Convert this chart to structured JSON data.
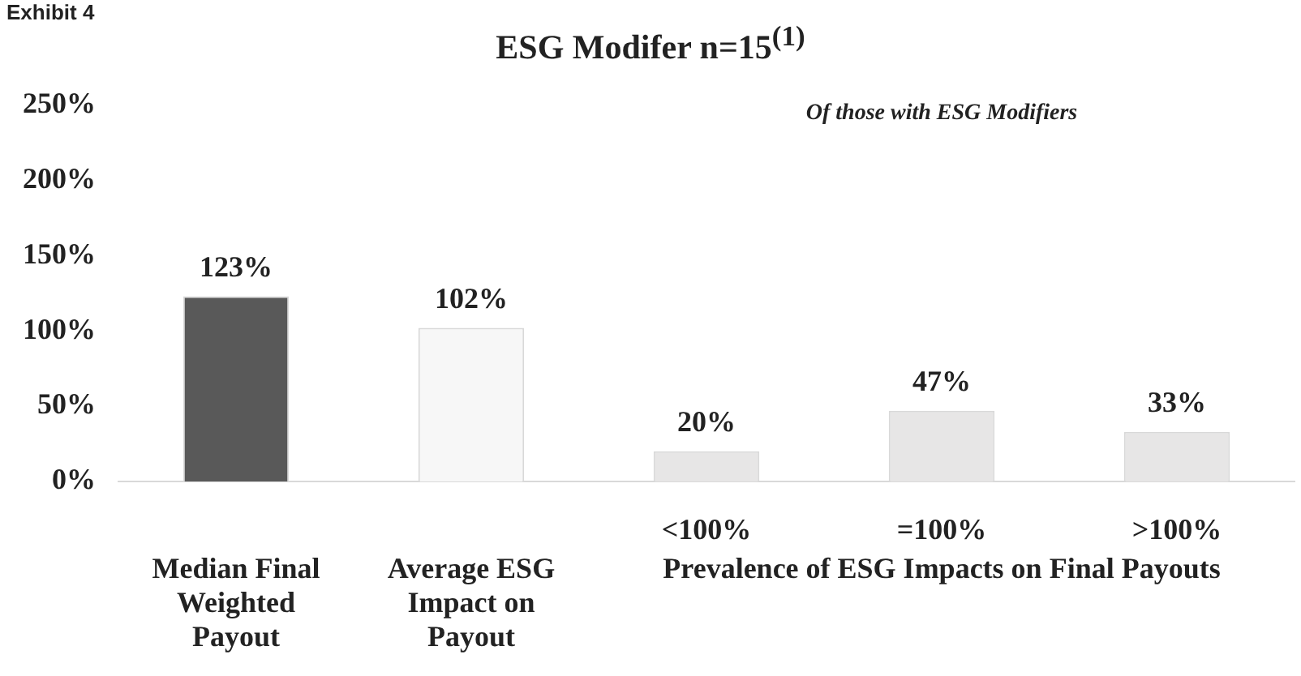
{
  "chart_data": {
    "type": "bar",
    "title": "ESG Modifer n=15$^{(1)}$",
    "categories": [
      "Median Final Weighted Payout",
      "Average ESG Impact on Payout",
      "<100%",
      "=100%",
      ">100%"
    ],
    "values": [
      123,
      102,
      20,
      47,
      33
    ],
    "colors": [
      "#595959",
      "#f7f7f7",
      "#e7e6e6",
      "#e7e6e6",
      "#e7e6e6"
    ],
    "value_labels": [
      "123%",
      "102%",
      "20%",
      "47%",
      "33%"
    ],
    "ylim": [
      0,
      250
    ],
    "yticks": [
      {
        "value": 0,
        "label": "0%"
      },
      {
        "value": 50,
        "label": "50%"
      },
      {
        "value": 100,
        "label": "100%"
      },
      {
        "value": 150,
        "label": "150%"
      },
      {
        "value": 200,
        "label": "200%"
      },
      {
        "value": 250,
        "label": "250%"
      }
    ],
    "grid": false,
    "legend": false,
    "annotations": [
      "Exhibit 4",
      "Of those with ESG Modifiers",
      "Prevalence of ESG Impacts on Final Payouts"
    ]
  }
}
